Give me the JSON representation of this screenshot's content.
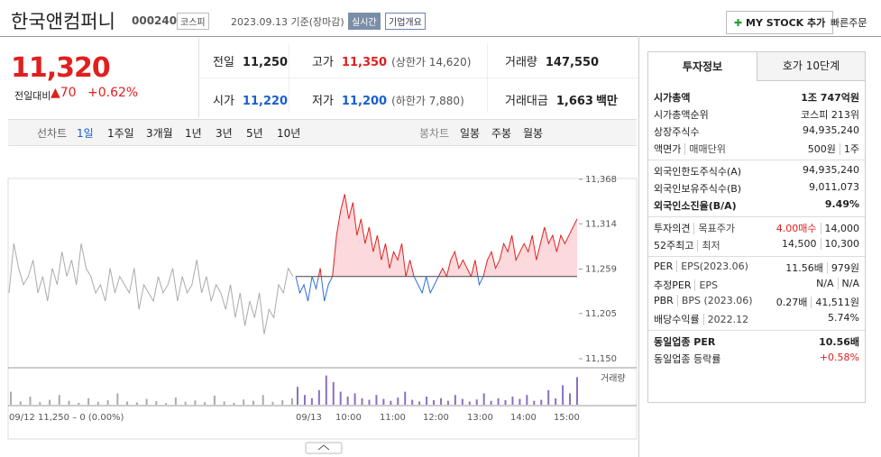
{
  "header": {
    "title": "한국앤컴퍼니",
    "code": "000240",
    "market": "코스피",
    "date": "2023.09.13 기준(장마감)",
    "realtime": "실시간",
    "overview": "기업개요",
    "mystock": "MY STOCK 추가",
    "quick_order": "빠른주문"
  },
  "quote": {
    "price": "11,320",
    "change_label": "전일대비",
    "change": "▲70",
    "change_pct": "+0.62%",
    "cells": [
      {
        "label": "전일",
        "value": "11,250"
      },
      {
        "label": "고가",
        "value": "11,350",
        "note": "(상한가 14,620)"
      },
      {
        "label": "거래량",
        "value": "147,550"
      },
      {
        "label": "시가",
        "value": "11,220"
      },
      {
        "label": "저가",
        "value": "11,200",
        "note": "(하한가 7,880)"
      },
      {
        "label": "거래대금",
        "value": "1,663",
        "unit": "백만"
      }
    ]
  },
  "tabs": {
    "line_label": "선차트",
    "line": [
      "1일",
      "1주일",
      "3개월",
      "1년",
      "3년",
      "5년",
      "10년"
    ],
    "candle_label": "봉차트",
    "candle": [
      "일봉",
      "주봉",
      "월봉"
    ]
  },
  "chart_data": {
    "type": "line",
    "ylim": [
      11150,
      11368
    ],
    "yticks": [
      {
        "value": 11368,
        "label": "11,368"
      },
      {
        "value": 11314,
        "label": "11,314"
      },
      {
        "value": 11259,
        "label": "11,259"
      },
      {
        "value": 11205,
        "label": "11,205"
      },
      {
        "value": 11150,
        "label": "11,150"
      }
    ],
    "baseline": 11250,
    "prev_day": [
      11230,
      11290,
      11260,
      11240,
      11250,
      11270,
      11230,
      11250,
      11220,
      11260,
      11240,
      11280,
      11250,
      11270,
      11240,
      11290,
      11260,
      11250,
      11230,
      11240,
      11220,
      11260,
      11230,
      11250,
      11240,
      11230,
      11260,
      11210,
      11240,
      11230,
      11220,
      11250,
      11230,
      11240,
      11260,
      11220,
      11250,
      11230,
      11240,
      11270,
      11230,
      11250,
      11220,
      11240,
      11230,
      11210,
      11240,
      11200,
      11230,
      11190,
      11220,
      11200,
      11230,
      11180,
      11210,
      11200,
      11240,
      11230,
      11260,
      11250
    ],
    "today": [
      11250,
      11230,
      11240,
      11220,
      11250,
      11235,
      11260,
      11220,
      11240,
      11250,
      11300,
      11330,
      11350,
      11320,
      11340,
      11300,
      11320,
      11290,
      11310,
      11280,
      11300,
      11270,
      11290,
      11260,
      11280,
      11270,
      11290,
      11250,
      11270,
      11250,
      11240,
      11230,
      11250,
      11230,
      11240,
      11250,
      11260,
      11250,
      11270,
      11280,
      11260,
      11270,
      11260,
      11250,
      11270,
      11240,
      11250,
      11270,
      11280,
      11260,
      11270,
      11290,
      11280,
      11300,
      11270,
      11280,
      11290,
      11280,
      11300,
      11270,
      11290,
      11310,
      11290,
      11300,
      11280,
      11300,
      11290,
      11300,
      11310,
      11320
    ],
    "volume_label": "거래량",
    "volume_ylim": [
      0,
      100
    ],
    "volume_prev": [
      40,
      10,
      25,
      8,
      15,
      30,
      12,
      6,
      20,
      9,
      14,
      35,
      10,
      7,
      18,
      11,
      5,
      22,
      9,
      13,
      8,
      28,
      10,
      6,
      16,
      12,
      30,
      9,
      14,
      20
    ],
    "volume_today": [
      55,
      30,
      20,
      45,
      90,
      70,
      40,
      25,
      35,
      20,
      15,
      30,
      18,
      12,
      22,
      40,
      15,
      10,
      25,
      14,
      20,
      12,
      30,
      18,
      10,
      16,
      35,
      12,
      20,
      14,
      25,
      18,
      30,
      12,
      15,
      45,
      20,
      60,
      35,
      85
    ],
    "prev_label": "09/12  11,250 – 0 (0.00%)",
    "x_labels": [
      "09/13",
      "10:00",
      "11:00",
      "12:00",
      "13:00",
      "14:00",
      "15:00"
    ]
  },
  "info": {
    "tabs": [
      "투자정보",
      "호가 10단계"
    ],
    "sections": [
      [
        {
          "label": [
            "시가총액"
          ],
          "value": [
            "1조 747억원"
          ]
        },
        {
          "label": [
            "시가총액순위"
          ],
          "value": [
            "코스피 213위"
          ]
        },
        {
          "label": [
            "상장주식수"
          ],
          "value": [
            "94,935,240"
          ]
        },
        {
          "label": [
            "액면가",
            "매매단위"
          ],
          "value": [
            "500원",
            "1주"
          ]
        }
      ],
      [
        {
          "label": [
            "외국인한도주식수(A)"
          ],
          "value": [
            "94,935,240"
          ]
        },
        {
          "label": [
            "외국인보유주식수(B)"
          ],
          "value": [
            "9,011,073"
          ]
        },
        {
          "label": [
            "외국인소진율(B/A)"
          ],
          "value": [
            "9.49%"
          ]
        }
      ],
      [
        {
          "label": [
            "투자의견",
            "목표주가"
          ],
          "value": [
            "4.00매수",
            "14,000"
          ]
        },
        {
          "label": [
            "52주최고",
            "최저"
          ],
          "value": [
            "14,500",
            "10,300"
          ]
        }
      ],
      [
        {
          "label": [
            "PER",
            "EPS(2023.06)"
          ],
          "value": [
            "11.56배",
            "979원"
          ]
        },
        {
          "label": [
            "추정PER",
            "EPS"
          ],
          "value": [
            "N/A",
            "N/A"
          ]
        },
        {
          "label": [
            "PBR",
            "BPS (2023.06)"
          ],
          "value": [
            "0.27배",
            "41,511원"
          ]
        },
        {
          "label": [
            "배당수익률",
            "2022.12"
          ],
          "value": [
            "5.74%"
          ]
        }
      ],
      [
        {
          "label": [
            "동일업종 PER"
          ],
          "value": [
            "10.56배"
          ]
        },
        {
          "label": [
            "동일업종 등락률"
          ],
          "value": [
            "+0.58%"
          ]
        }
      ]
    ]
  }
}
